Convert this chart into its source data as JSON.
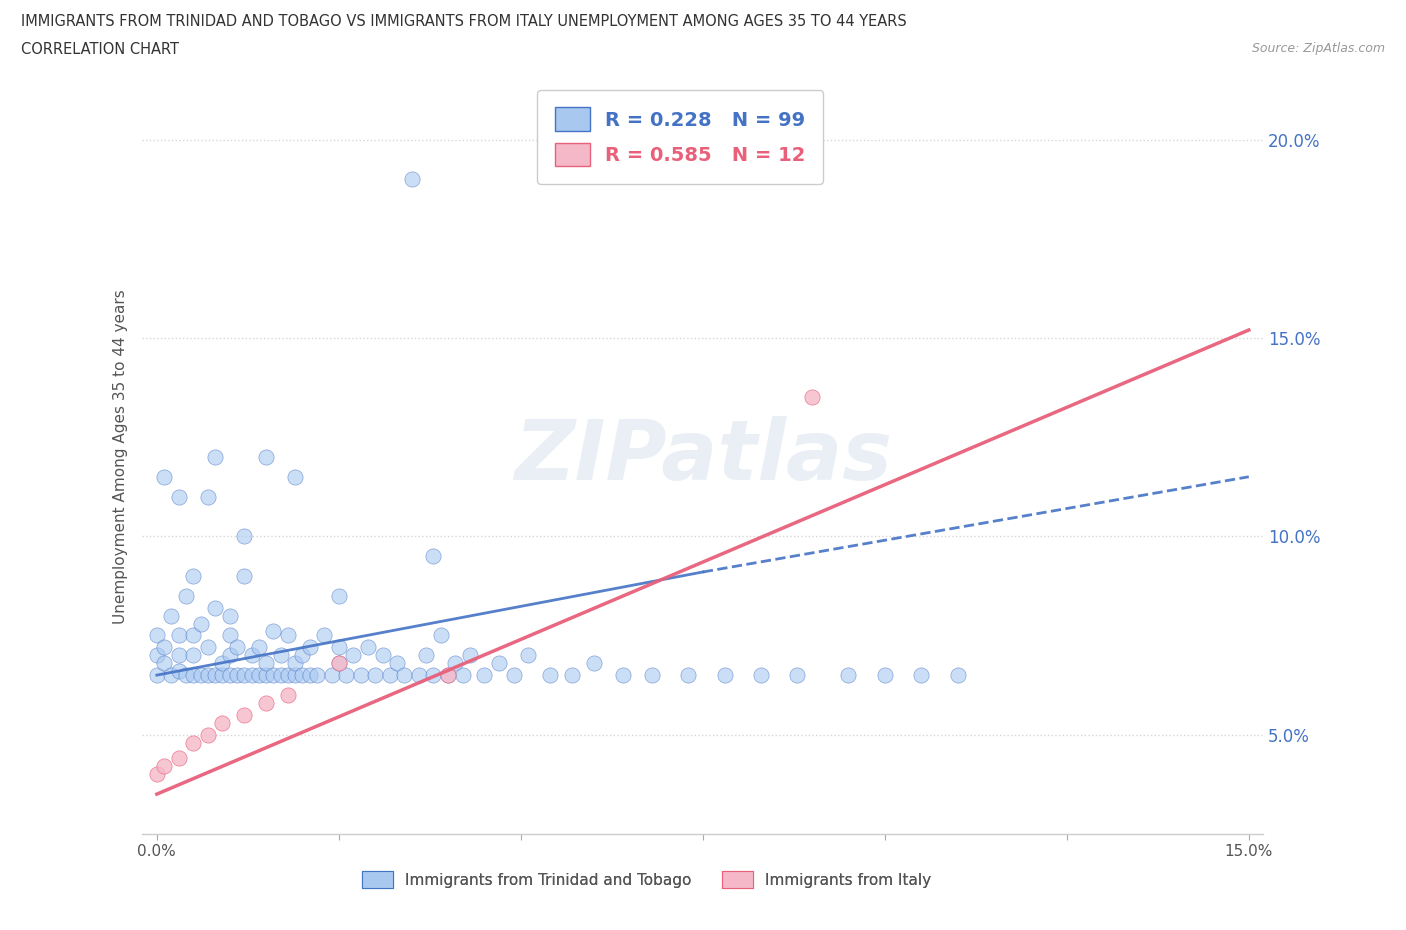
{
  "title_line1": "IMMIGRANTS FROM TRINIDAD AND TOBAGO VS IMMIGRANTS FROM ITALY UNEMPLOYMENT AMONG AGES 35 TO 44 YEARS",
  "title_line2": "CORRELATION CHART",
  "source": "Source: ZipAtlas.com",
  "ylabel": "Unemployment Among Ages 35 to 44 years",
  "xlim": [
    -0.002,
    0.152
  ],
  "ylim": [
    0.025,
    0.215
  ],
  "yticks": [
    0.05,
    0.1,
    0.15,
    0.2
  ],
  "xticks": [
    0.0,
    0.025,
    0.05,
    0.075,
    0.1,
    0.125,
    0.15
  ],
  "watermark_text": "ZIPatlas",
  "blue_color": "#a8c8f0",
  "pink_color": "#f5b8c8",
  "blue_line_color": "#4472c4",
  "pink_line_color": "#e8607a",
  "legend_r1": "R = 0.228   N = 99",
  "legend_r2": "R = 0.585   N = 12",
  "series1_label": "Immigrants from Trinidad and Tobago",
  "series2_label": "Immigrants from Italy",
  "tt_trend_y0": 0.065,
  "tt_trend_y1": 0.115,
  "it_trend_y0": 0.035,
  "it_trend_y1": 0.152,
  "tt_x": [
    0.0,
    0.0,
    0.0,
    0.001,
    0.001,
    0.002,
    0.002,
    0.003,
    0.003,
    0.003,
    0.004,
    0.004,
    0.005,
    0.005,
    0.005,
    0.005,
    0.006,
    0.006,
    0.007,
    0.007,
    0.008,
    0.008,
    0.009,
    0.009,
    0.01,
    0.01,
    0.01,
    0.01,
    0.011,
    0.011,
    0.012,
    0.012,
    0.013,
    0.013,
    0.014,
    0.014,
    0.015,
    0.015,
    0.016,
    0.016,
    0.017,
    0.017,
    0.018,
    0.018,
    0.019,
    0.019,
    0.02,
    0.02,
    0.021,
    0.021,
    0.022,
    0.023,
    0.024,
    0.025,
    0.025,
    0.026,
    0.027,
    0.028,
    0.029,
    0.03,
    0.031,
    0.032,
    0.033,
    0.034,
    0.035,
    0.036,
    0.037,
    0.038,
    0.039,
    0.04,
    0.041,
    0.042,
    0.043,
    0.045,
    0.047,
    0.049,
    0.051,
    0.054,
    0.057,
    0.06,
    0.064,
    0.068,
    0.073,
    0.078,
    0.083,
    0.088,
    0.095,
    0.1,
    0.105,
    0.11,
    0.038,
    0.019,
    0.008,
    0.003,
    0.001,
    0.025,
    0.015,
    0.012,
    0.007
  ],
  "tt_y": [
    0.07,
    0.065,
    0.075,
    0.068,
    0.072,
    0.065,
    0.08,
    0.066,
    0.07,
    0.075,
    0.065,
    0.085,
    0.065,
    0.07,
    0.075,
    0.09,
    0.065,
    0.078,
    0.065,
    0.072,
    0.065,
    0.082,
    0.065,
    0.068,
    0.065,
    0.07,
    0.075,
    0.08,
    0.065,
    0.072,
    0.065,
    0.09,
    0.065,
    0.07,
    0.065,
    0.072,
    0.065,
    0.068,
    0.065,
    0.076,
    0.065,
    0.07,
    0.065,
    0.075,
    0.065,
    0.068,
    0.065,
    0.07,
    0.065,
    0.072,
    0.065,
    0.075,
    0.065,
    0.068,
    0.072,
    0.065,
    0.07,
    0.065,
    0.072,
    0.065,
    0.07,
    0.065,
    0.068,
    0.065,
    0.19,
    0.065,
    0.07,
    0.065,
    0.075,
    0.065,
    0.068,
    0.065,
    0.07,
    0.065,
    0.068,
    0.065,
    0.07,
    0.065,
    0.065,
    0.068,
    0.065,
    0.065,
    0.065,
    0.065,
    0.065,
    0.065,
    0.065,
    0.065,
    0.065,
    0.065,
    0.095,
    0.115,
    0.12,
    0.11,
    0.115,
    0.085,
    0.12,
    0.1,
    0.11
  ],
  "it_x": [
    0.0,
    0.001,
    0.003,
    0.005,
    0.007,
    0.009,
    0.012,
    0.015,
    0.018,
    0.025,
    0.09,
    0.04
  ],
  "it_y": [
    0.04,
    0.042,
    0.044,
    0.048,
    0.05,
    0.053,
    0.055,
    0.058,
    0.06,
    0.068,
    0.135,
    0.065
  ]
}
